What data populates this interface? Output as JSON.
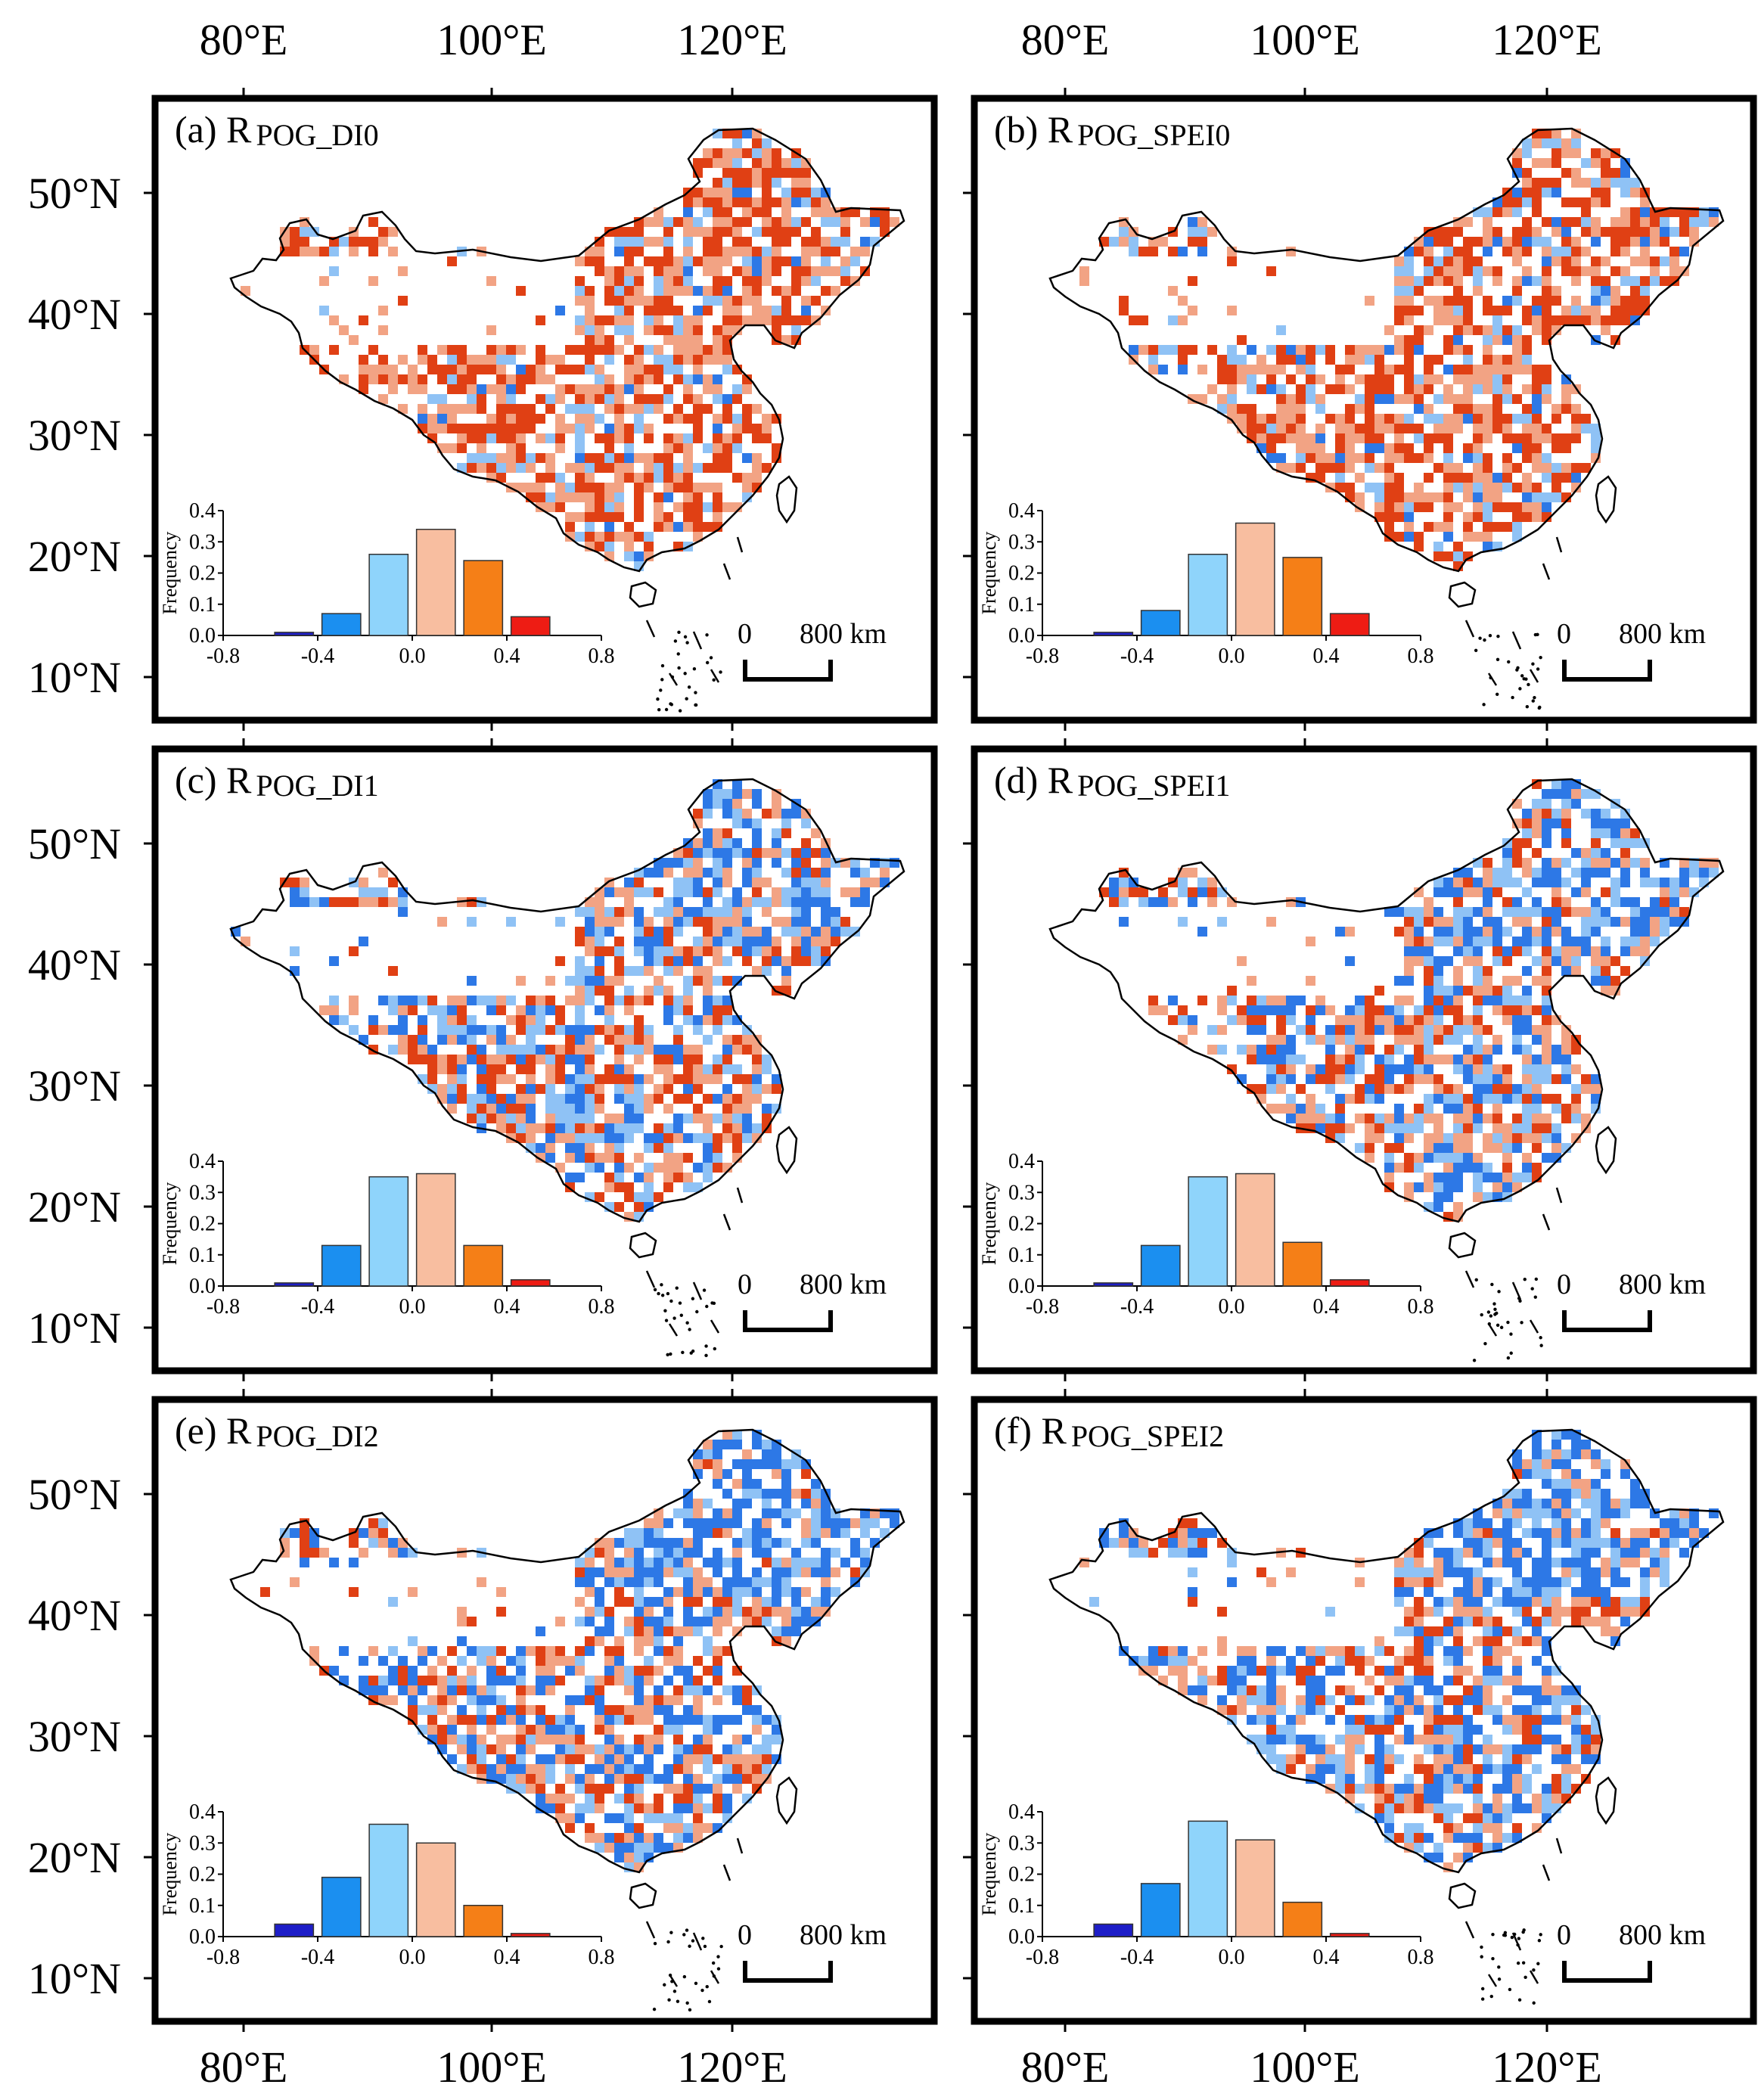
{
  "figure": {
    "lon_ticks": [
      "80°E",
      "100°E",
      "120°E"
    ],
    "lat_ticks": [
      "50°N",
      "40°N",
      "30°N",
      "20°N",
      "10°N"
    ]
  },
  "colors": {
    "dark_blue": "#1e1ec8",
    "blue": "#1b8ff0",
    "light_blue": "#8fd4fb",
    "light_orange": "#f8bea0",
    "orange": "#f57f17",
    "red": "#ee1c14",
    "map_blue": "#2d78e6",
    "map_lightblue": "#8fc2f5",
    "map_peach": "#f2a384",
    "map_red": "#e04014"
  },
  "panels": [
    {
      "id": "a",
      "label": "(a) R",
      "subscript": "POG_DI0"
    },
    {
      "id": "b",
      "label": "(b) R",
      "subscript": "POG_SPEI0"
    },
    {
      "id": "c",
      "label": "(c) R",
      "subscript": "POG_DI1"
    },
    {
      "id": "d",
      "label": "(d) R",
      "subscript": "POG_SPEI1"
    },
    {
      "id": "e",
      "label": "(e) R",
      "subscript": "POG_DI2"
    },
    {
      "id": "f",
      "label": "(f) R",
      "subscript": "POG_SPEI2"
    }
  ],
  "scale_bar": {
    "zero": "0",
    "distance": "800 km"
  },
  "chart_data": [
    {
      "type": "bar",
      "panel": "a",
      "ylabel": "Frequency",
      "xlim": [
        -0.8,
        0.8
      ],
      "ylim": [
        0,
        0.4
      ],
      "xticks": [
        "-0.8",
        "-0.4",
        "0.0",
        "0.4",
        "0.8"
      ],
      "yticks": [
        "0.0",
        "0.1",
        "0.2",
        "0.3",
        "0.4"
      ],
      "bin_centers": [
        -0.5,
        -0.3,
        -0.1,
        0.1,
        0.3,
        0.5
      ],
      "values": [
        0.01,
        0.07,
        0.26,
        0.34,
        0.24,
        0.06
      ]
    },
    {
      "type": "bar",
      "panel": "b",
      "ylabel": "Frequency",
      "xlim": [
        -0.8,
        0.8
      ],
      "ylim": [
        0,
        0.4
      ],
      "xticks": [
        "-0.8",
        "-0.4",
        "0.0",
        "0.4",
        "0.8"
      ],
      "yticks": [
        "0.0",
        "0.1",
        "0.2",
        "0.3",
        "0.4"
      ],
      "bin_centers": [
        -0.5,
        -0.3,
        -0.1,
        0.1,
        0.3,
        0.5
      ],
      "values": [
        0.01,
        0.08,
        0.26,
        0.36,
        0.25,
        0.07
      ]
    },
    {
      "type": "bar",
      "panel": "c",
      "ylabel": "Frequency",
      "xlim": [
        -0.8,
        0.8
      ],
      "ylim": [
        0,
        0.4
      ],
      "xticks": [
        "-0.8",
        "-0.4",
        "0.0",
        "0.4",
        "0.8"
      ],
      "yticks": [
        "0.0",
        "0.1",
        "0.2",
        "0.3",
        "0.4"
      ],
      "bin_centers": [
        -0.5,
        -0.3,
        -0.1,
        0.1,
        0.3,
        0.5
      ],
      "values": [
        0.01,
        0.13,
        0.35,
        0.36,
        0.13,
        0.02
      ]
    },
    {
      "type": "bar",
      "panel": "d",
      "ylabel": "Frequency",
      "xlim": [
        -0.8,
        0.8
      ],
      "ylim": [
        0,
        0.4
      ],
      "xticks": [
        "-0.8",
        "-0.4",
        "0.0",
        "0.4",
        "0.8"
      ],
      "yticks": [
        "0.0",
        "0.1",
        "0.2",
        "0.3",
        "0.4"
      ],
      "bin_centers": [
        -0.5,
        -0.3,
        -0.1,
        0.1,
        0.3,
        0.5
      ],
      "values": [
        0.01,
        0.13,
        0.35,
        0.36,
        0.14,
        0.02
      ]
    },
    {
      "type": "bar",
      "panel": "e",
      "ylabel": "Frequency",
      "xlim": [
        -0.8,
        0.8
      ],
      "ylim": [
        0,
        0.4
      ],
      "xticks": [
        "-0.8",
        "-0.4",
        "0.0",
        "0.4",
        "0.8"
      ],
      "yticks": [
        "0.0",
        "0.1",
        "0.2",
        "0.3",
        "0.4"
      ],
      "bin_centers": [
        -0.5,
        -0.3,
        -0.1,
        0.1,
        0.3,
        0.5
      ],
      "values": [
        0.04,
        0.19,
        0.36,
        0.3,
        0.1,
        0.01
      ]
    },
    {
      "type": "bar",
      "panel": "f",
      "ylabel": "Frequency",
      "xlim": [
        -0.8,
        0.8
      ],
      "ylim": [
        0,
        0.4
      ],
      "xticks": [
        "-0.8",
        "-0.4",
        "0.0",
        "0.4",
        "0.8"
      ],
      "yticks": [
        "0.0",
        "0.1",
        "0.2",
        "0.3",
        "0.4"
      ],
      "bin_centers": [
        -0.5,
        -0.3,
        -0.1,
        0.1,
        0.3,
        0.5
      ],
      "values": [
        0.04,
        0.17,
        0.37,
        0.31,
        0.11,
        0.01
      ]
    }
  ]
}
